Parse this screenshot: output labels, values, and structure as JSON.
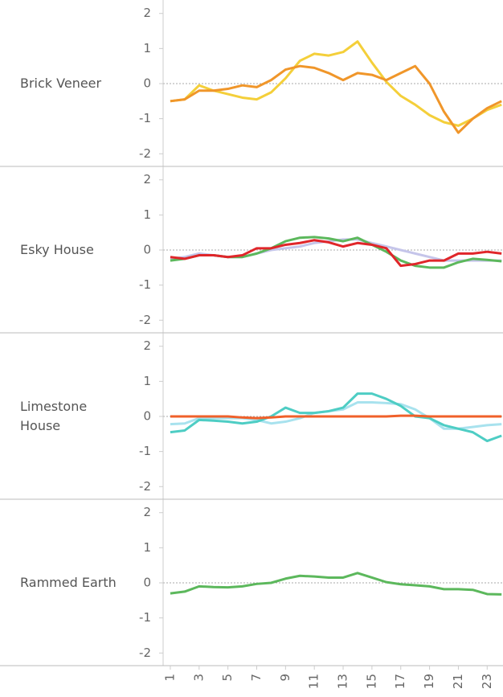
{
  "chart_data": [
    {
      "type": "line",
      "title": "Brick Veneer",
      "x": [
        1,
        2,
        3,
        4,
        5,
        6,
        7,
        8,
        9,
        10,
        11,
        12,
        13,
        14,
        15,
        16,
        17,
        18,
        19,
        20,
        21,
        22,
        23,
        24
      ],
      "xlim": [
        0.5,
        24.1
      ],
      "ylim": [
        -2.2,
        2.2
      ],
      "yticks": [
        -2,
        -1,
        0,
        1,
        2
      ],
      "series": [
        {
          "color": "#f4cf3a",
          "values": [
            -0.5,
            -0.45,
            -0.05,
            -0.2,
            -0.3,
            -0.4,
            -0.45,
            -0.25,
            0.15,
            0.65,
            0.85,
            0.8,
            0.9,
            1.2,
            0.6,
            0.05,
            -0.35,
            -0.6,
            -0.9,
            -1.1,
            -1.2,
            -1.0,
            -0.75,
            -0.6
          ]
        },
        {
          "color": "#f0962a",
          "values": [
            -0.5,
            -0.45,
            -0.2,
            -0.2,
            -0.15,
            -0.05,
            -0.1,
            0.1,
            0.4,
            0.5,
            0.45,
            0.3,
            0.1,
            0.3,
            0.25,
            0.1,
            0.3,
            0.5,
            0.0,
            -0.8,
            -1.4,
            -1.0,
            -0.7,
            -0.5
          ]
        }
      ]
    },
    {
      "type": "line",
      "title": "Esky House",
      "x": [
        1,
        2,
        3,
        4,
        5,
        6,
        7,
        8,
        9,
        10,
        11,
        12,
        13,
        14,
        15,
        16,
        17,
        18,
        19,
        20,
        21,
        22,
        23,
        24
      ],
      "xlim": [
        0.5,
        24.1
      ],
      "ylim": [
        -2.2,
        2.2
      ],
      "yticks": [
        -2,
        -1,
        0,
        1,
        2
      ],
      "series": [
        {
          "color": "#c5c5ea",
          "values": [
            -0.25,
            -0.2,
            -0.1,
            -0.15,
            -0.2,
            -0.2,
            -0.1,
            0.0,
            0.05,
            0.1,
            0.2,
            0.25,
            0.3,
            0.3,
            0.2,
            0.1,
            0.0,
            -0.1,
            -0.2,
            -0.3,
            -0.3,
            -0.3,
            -0.3,
            -0.3
          ]
        },
        {
          "color": "#5cb85c",
          "values": [
            -0.3,
            -0.25,
            -0.15,
            -0.15,
            -0.2,
            -0.2,
            -0.1,
            0.05,
            0.25,
            0.35,
            0.37,
            0.33,
            0.25,
            0.35,
            0.15,
            -0.05,
            -0.3,
            -0.45,
            -0.5,
            -0.5,
            -0.35,
            -0.25,
            -0.28,
            -0.32
          ]
        },
        {
          "color": "#e0262a",
          "values": [
            -0.2,
            -0.25,
            -0.15,
            -0.15,
            -0.2,
            -0.15,
            0.05,
            0.05,
            0.15,
            0.2,
            0.28,
            0.22,
            0.1,
            0.2,
            0.15,
            0.05,
            -0.45,
            -0.4,
            -0.3,
            -0.3,
            -0.1,
            -0.1,
            -0.05,
            -0.1
          ]
        }
      ]
    },
    {
      "type": "line",
      "title": "Limestone House",
      "x": [
        1,
        2,
        3,
        4,
        5,
        6,
        7,
        8,
        9,
        10,
        11,
        12,
        13,
        14,
        15,
        16,
        17,
        18,
        19,
        20,
        21,
        22,
        23,
        24
      ],
      "xlim": [
        0.5,
        24.1
      ],
      "ylim": [
        -2.2,
        2.2
      ],
      "yticks": [
        -2,
        -1,
        0,
        1,
        2
      ],
      "series": [
        {
          "color": "#a8e2ee",
          "values": [
            -0.22,
            -0.2,
            -0.05,
            -0.05,
            -0.05,
            -0.05,
            -0.1,
            -0.2,
            -0.15,
            -0.05,
            0.1,
            0.15,
            0.2,
            0.4,
            0.4,
            0.38,
            0.35,
            0.2,
            -0.05,
            -0.35,
            -0.35,
            -0.3,
            -0.25,
            -0.22
          ]
        },
        {
          "color": "#4ecdc4",
          "values": [
            -0.45,
            -0.4,
            -0.1,
            -0.12,
            -0.15,
            -0.2,
            -0.15,
            0,
            0.25,
            0.1,
            0.1,
            0.15,
            0.25,
            0.65,
            0.65,
            0.5,
            0.3,
            0,
            -0.05,
            -0.25,
            -0.35,
            -0.45,
            -0.7,
            -0.55
          ]
        },
        {
          "color": "#f0602a",
          "values": [
            0,
            0,
            0,
            0,
            0,
            -0.03,
            -0.05,
            -0.03,
            0,
            0,
            0,
            0,
            0,
            0,
            0,
            0,
            0.02,
            0.02,
            0,
            0,
            0,
            0,
            0,
            0
          ]
        }
      ]
    },
    {
      "type": "line",
      "title": "Rammed Earth",
      "x": [
        1,
        2,
        3,
        4,
        5,
        6,
        7,
        8,
        9,
        10,
        11,
        12,
        13,
        14,
        15,
        16,
        17,
        18,
        19,
        20,
        21,
        22,
        23,
        24
      ],
      "xlim": [
        0.5,
        24.1
      ],
      "ylim": [
        -2.2,
        2.2
      ],
      "yticks": [
        -2,
        -1,
        0,
        1,
        2
      ],
      "xticks": [
        1,
        3,
        5,
        7,
        9,
        11,
        13,
        15,
        17,
        19,
        21,
        23
      ],
      "series": [
        {
          "color": "#5cb85c",
          "values": [
            -0.3,
            -0.25,
            -0.1,
            -0.12,
            -0.13,
            -0.1,
            -0.03,
            0,
            0.12,
            0.2,
            0.18,
            0.15,
            0.15,
            0.28,
            0.15,
            0.02,
            -0.04,
            -0.07,
            -0.1,
            -0.18,
            -0.18,
            -0.2,
            -0.32,
            -0.33
          ]
        }
      ]
    }
  ]
}
